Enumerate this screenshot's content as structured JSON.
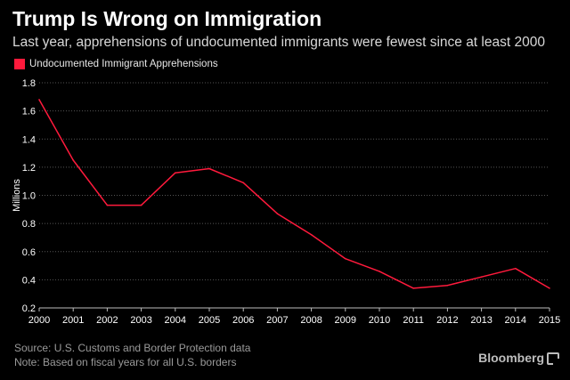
{
  "header": {
    "title": "Trump Is Wrong on Immigration",
    "subtitle": "Last year, apprehensions of undocumented immigrants were fewest since at least 2000"
  },
  "legend": {
    "label": "Undocumented Immigrant Apprehensions",
    "color": "#ff1a3c"
  },
  "chart_data": {
    "type": "line",
    "title": "Trump Is Wrong on Immigration",
    "subtitle": "Last year, apprehensions of undocumented immigrants were fewest since at least 2000",
    "xlabel": "",
    "ylabel": "Millions",
    "x": [
      "2000",
      "2001",
      "2002",
      "2003",
      "2004",
      "2005",
      "2006",
      "2007",
      "2008",
      "2009",
      "2010",
      "2011",
      "2012",
      "2013",
      "2014",
      "2015"
    ],
    "series": [
      {
        "name": "Undocumented Immigrant Apprehensions",
        "values": [
          1.68,
          1.25,
          0.93,
          0.93,
          1.16,
          1.19,
          1.09,
          0.87,
          0.72,
          0.55,
          0.46,
          0.34,
          0.36,
          0.42,
          0.48,
          0.34
        ]
      }
    ],
    "yticks": [
      "0.2",
      "0.4",
      "0.6",
      "0.8",
      "1.0",
      "1.2",
      "1.4",
      "1.6",
      "1.8"
    ],
    "ylim": [
      0.2,
      1.8
    ],
    "grid": true,
    "legend_position": "top-left"
  },
  "footer": {
    "source": "Source: U.S. Customs and Border Protection data",
    "note": "Note: Based on fiscal years for all U.S. borders"
  },
  "logo": {
    "text": "Bloomberg"
  },
  "colors": {
    "background": "#000000",
    "line": "#ff1a3c",
    "grid": "#555555",
    "text": "#ffffff"
  }
}
